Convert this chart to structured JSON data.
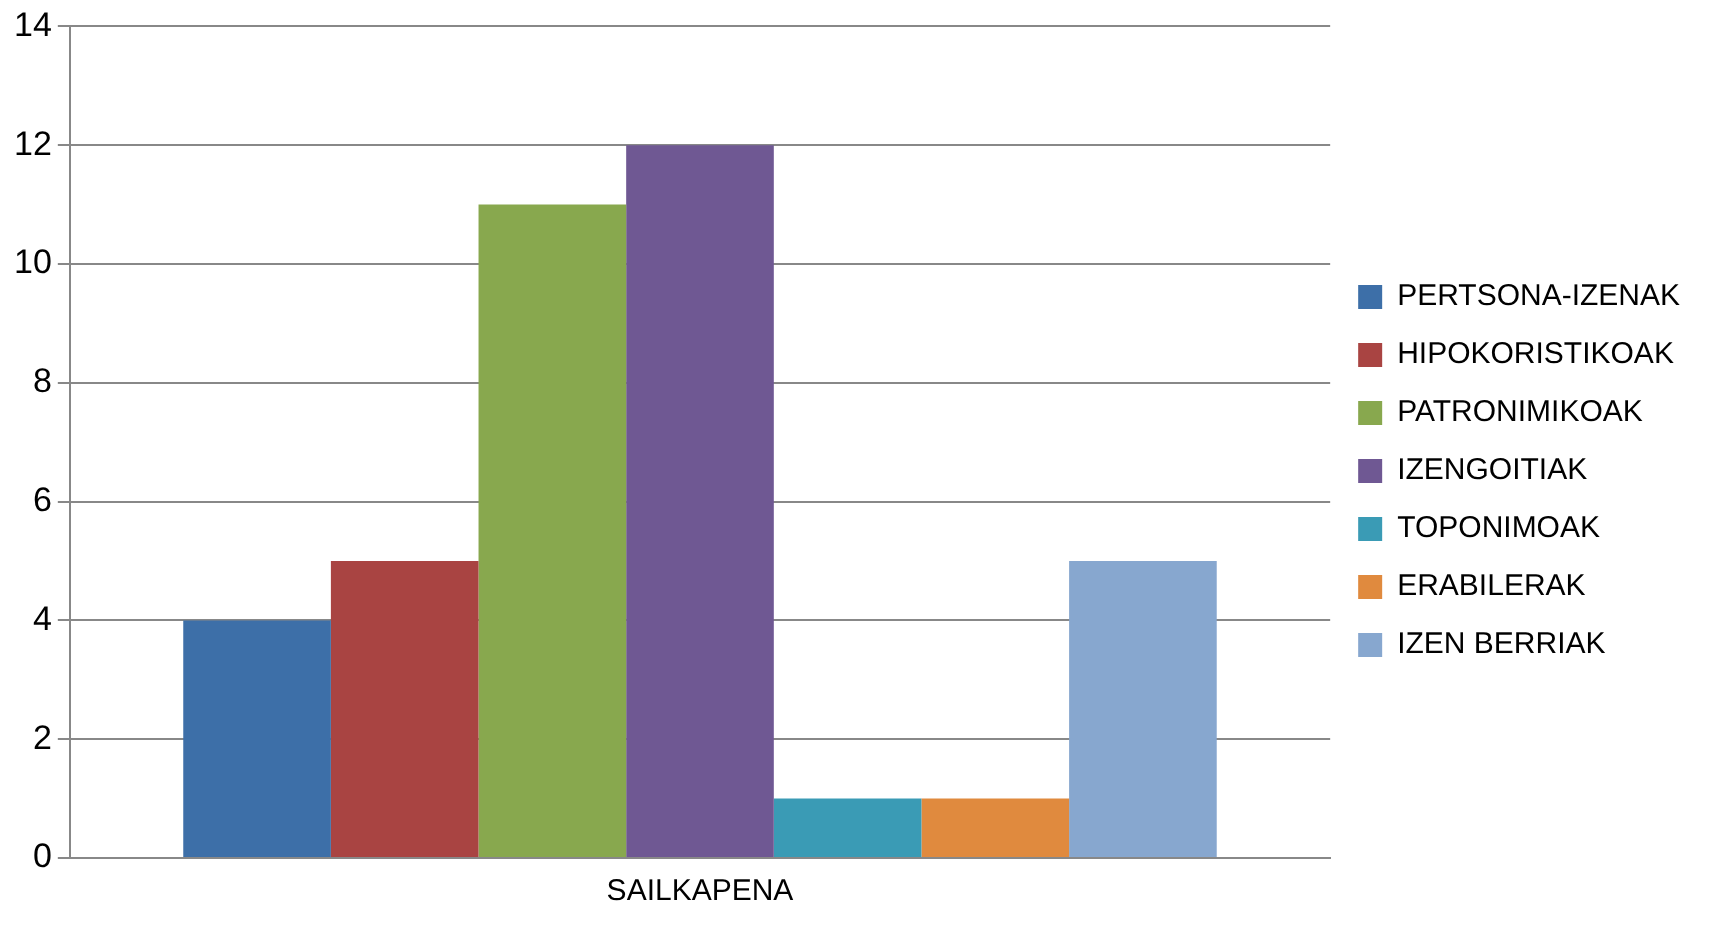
{
  "chart_data": {
    "type": "bar",
    "categories": [
      "SAILKAPENA"
    ],
    "series": [
      {
        "name": "PERTSONA-IZENAK",
        "color": "#3d6fa8",
        "values": [
          4
        ]
      },
      {
        "name": "HIPOKORISTIKOAK",
        "color": "#a94442",
        "values": [
          5
        ]
      },
      {
        "name": "PATRONIMIKOAK",
        "color": "#88a84e",
        "values": [
          11
        ]
      },
      {
        "name": "IZENGOITIAK",
        "color": "#6f5893",
        "values": [
          12
        ]
      },
      {
        "name": "TOPONIMOAK",
        "color": "#3a9bb5",
        "values": [
          1
        ]
      },
      {
        "name": "ERABILERAK",
        "color": "#e08a3e",
        "values": [
          1
        ]
      },
      {
        "name": "IZEN BERRIAK",
        "color": "#87a7cf",
        "values": [
          5
        ]
      }
    ],
    "ylim": [
      0,
      14
    ],
    "yticks": [
      0,
      2,
      4,
      6,
      8,
      10,
      12,
      14
    ],
    "grid": "y",
    "legend": "right"
  }
}
